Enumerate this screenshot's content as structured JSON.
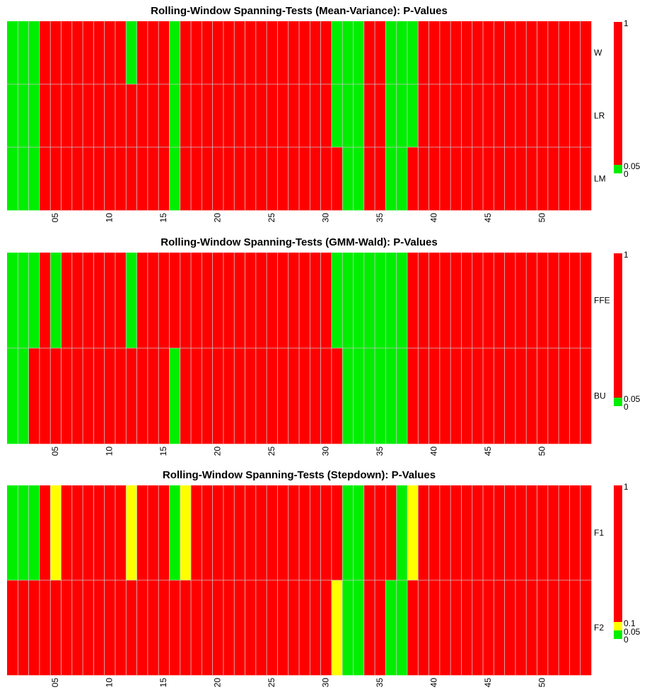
{
  "chart_data": [
    {
      "type": "heatmap",
      "title": "Rolling-Window Spanning-Tests (Mean-Variance): P-Values",
      "n_windows": 54,
      "x_tick_labels": [
        "05",
        "10",
        "15",
        "20",
        "25",
        "30",
        "35",
        "40",
        "45",
        "50"
      ],
      "x_tick_windows": [
        5,
        10,
        15,
        20,
        25,
        30,
        35,
        40,
        45,
        50
      ],
      "rows": [
        "W",
        "LR",
        "LM"
      ],
      "cells": {
        "W": [
          0,
          0,
          0,
          2,
          2,
          2,
          2,
          2,
          2,
          2,
          2,
          0,
          2,
          2,
          2,
          0,
          2,
          2,
          2,
          2,
          2,
          2,
          2,
          2,
          2,
          2,
          2,
          2,
          2,
          2,
          0,
          0,
          0,
          2,
          2,
          0,
          0,
          0,
          2,
          2,
          2,
          2,
          2,
          2,
          2,
          2,
          2,
          2,
          2,
          2,
          2,
          2,
          2,
          2
        ],
        "LR": [
          0,
          0,
          0,
          2,
          2,
          2,
          2,
          2,
          2,
          2,
          2,
          2,
          2,
          2,
          2,
          0,
          2,
          2,
          2,
          2,
          2,
          2,
          2,
          2,
          2,
          2,
          2,
          2,
          2,
          2,
          0,
          0,
          0,
          2,
          2,
          0,
          0,
          0,
          2,
          2,
          2,
          2,
          2,
          2,
          2,
          2,
          2,
          2,
          2,
          2,
          2,
          2,
          2,
          2
        ],
        "LM": [
          0,
          0,
          0,
          2,
          2,
          2,
          2,
          2,
          2,
          2,
          2,
          2,
          2,
          2,
          2,
          0,
          2,
          2,
          2,
          2,
          2,
          2,
          2,
          2,
          2,
          2,
          2,
          2,
          2,
          2,
          2,
          0,
          0,
          2,
          2,
          0,
          0,
          2,
          2,
          2,
          2,
          2,
          2,
          2,
          2,
          2,
          2,
          2,
          2,
          2,
          2,
          2,
          2,
          2
        ]
      },
      "legend": {
        "ticks": [
          "1",
          "0.05",
          "0"
        ],
        "breaks": [
          1,
          0.05,
          0
        ]
      }
    },
    {
      "type": "heatmap",
      "title": "Rolling-Window Spanning-Tests (GMM-Wald): P-Values",
      "n_windows": 54,
      "x_tick_labels": [
        "05",
        "10",
        "15",
        "20",
        "25",
        "30",
        "35",
        "40",
        "45",
        "50"
      ],
      "x_tick_windows": [
        5,
        10,
        15,
        20,
        25,
        30,
        35,
        40,
        45,
        50
      ],
      "rows": [
        "FFE",
        "BU"
      ],
      "cells": {
        "FFE": [
          0,
          0,
          0,
          2,
          0,
          2,
          2,
          2,
          2,
          2,
          2,
          0,
          2,
          2,
          2,
          2,
          2,
          2,
          2,
          2,
          2,
          2,
          2,
          2,
          2,
          2,
          2,
          2,
          2,
          2,
          0,
          0,
          0,
          0,
          0,
          0,
          0,
          2,
          2,
          2,
          2,
          2,
          2,
          2,
          2,
          2,
          2,
          2,
          2,
          2,
          2,
          2,
          2,
          2
        ],
        "BU": [
          0,
          0,
          2,
          2,
          2,
          2,
          2,
          2,
          2,
          2,
          2,
          2,
          2,
          2,
          2,
          0,
          2,
          2,
          2,
          2,
          2,
          2,
          2,
          2,
          2,
          2,
          2,
          2,
          2,
          2,
          2,
          0,
          0,
          0,
          0,
          0,
          0,
          2,
          2,
          2,
          2,
          2,
          2,
          2,
          2,
          2,
          2,
          2,
          2,
          2,
          2,
          2,
          2,
          2
        ]
      },
      "legend": {
        "ticks": [
          "1",
          "0.05",
          "0"
        ],
        "breaks": [
          1,
          0.05,
          0
        ]
      }
    },
    {
      "type": "heatmap",
      "title": "Rolling-Window Spanning-Tests (Stepdown): P-Values",
      "n_windows": 54,
      "x_tick_labels": [
        "05",
        "10",
        "15",
        "20",
        "25",
        "30",
        "35",
        "40",
        "45",
        "50"
      ],
      "x_tick_windows": [
        5,
        10,
        15,
        20,
        25,
        30,
        35,
        40,
        45,
        50
      ],
      "rows": [
        "F1",
        "F2"
      ],
      "cells": {
        "F1": [
          0,
          0,
          0,
          2,
          1,
          2,
          2,
          2,
          2,
          2,
          2,
          1,
          2,
          2,
          2,
          0,
          1,
          2,
          2,
          2,
          2,
          2,
          2,
          2,
          2,
          2,
          2,
          2,
          2,
          2,
          2,
          0,
          0,
          2,
          2,
          2,
          0,
          1,
          2,
          2,
          2,
          2,
          2,
          2,
          2,
          2,
          2,
          2,
          2,
          2,
          2,
          2,
          2,
          2
        ],
        "F2": [
          2,
          2,
          2,
          2,
          2,
          2,
          2,
          2,
          2,
          2,
          2,
          2,
          2,
          2,
          2,
          2,
          2,
          2,
          2,
          2,
          2,
          2,
          2,
          2,
          2,
          2,
          2,
          2,
          2,
          2,
          1,
          0,
          0,
          2,
          2,
          0,
          0,
          2,
          2,
          2,
          2,
          2,
          2,
          2,
          2,
          2,
          2,
          2,
          2,
          2,
          2,
          2,
          2,
          2
        ]
      },
      "legend": {
        "ticks": [
          "1",
          "0.1",
          "0.05",
          "0"
        ],
        "breaks": [
          1,
          0.1,
          0.05,
          0
        ]
      }
    }
  ],
  "colors": {
    "low": "#00ee00",
    "mid": "#ffff00",
    "high": "#ff0000",
    "gridline": "#c8c8c8"
  }
}
